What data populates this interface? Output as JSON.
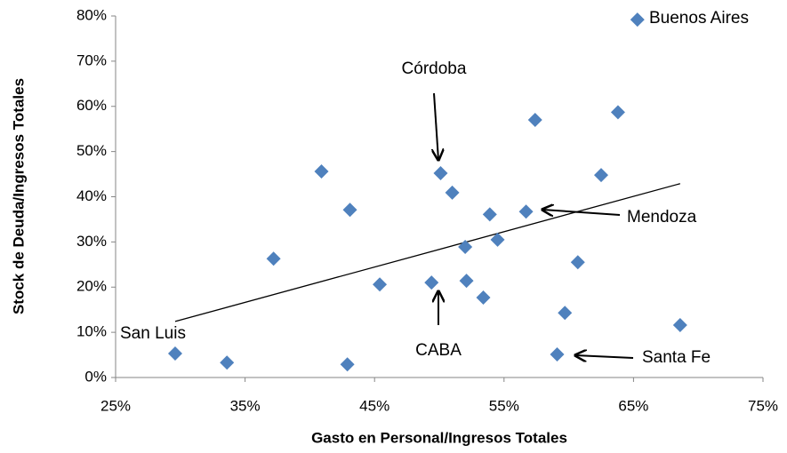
{
  "chart_data": {
    "type": "scatter",
    "x_label": "Gasto en Personal/Ingresos Totales",
    "y_label": "Stock de Deuda/Ingresos Totales",
    "series": [
      {
        "color": "#4f81bd",
        "x": [
          65.3,
          63.8,
          57.4,
          62.5,
          40.9,
          50.1,
          51.0,
          43.1,
          53.9,
          56.7,
          54.5,
          52.0,
          37.2,
          60.7,
          45.4,
          49.4,
          52.1,
          53.4,
          59.7,
          68.6,
          29.6,
          33.6,
          42.9,
          59.1
        ],
        "values": [
          79.2,
          58.7,
          57.0,
          44.8,
          45.6,
          45.2,
          40.9,
          37.1,
          36.1,
          36.7,
          30.5,
          28.9,
          26.3,
          25.5,
          20.6,
          21.0,
          21.4,
          17.7,
          14.3,
          11.6,
          5.3,
          3.3,
          2.9,
          5.1
        ]
      }
    ],
    "trendline": {
      "x": [
        29.6,
        68.6
      ],
      "values": [
        12.4,
        42.9
      ],
      "color": "#000000"
    },
    "xlim": [
      25,
      75
    ],
    "xticks": [
      {
        "value": 25,
        "label": "25%"
      },
      {
        "value": 35,
        "label": "35%"
      },
      {
        "value": 45,
        "label": "45%"
      },
      {
        "value": 55,
        "label": "55%"
      },
      {
        "value": 65,
        "label": "65%"
      },
      {
        "value": 75,
        "label": "75%"
      }
    ],
    "ylim": [
      0,
      80
    ],
    "yticks": [
      {
        "value": 0,
        "label": "0%"
      },
      {
        "value": 10,
        "label": "10%"
      },
      {
        "value": 20,
        "label": "20%"
      },
      {
        "value": 30,
        "label": "30%"
      },
      {
        "value": 40,
        "label": "40%"
      },
      {
        "value": 50,
        "label": "50%"
      },
      {
        "value": 60,
        "label": "60%"
      },
      {
        "value": 70,
        "label": "70%"
      },
      {
        "value": 80,
        "label": "80%"
      }
    ],
    "grid": false,
    "annotations": [
      "Buenos Aires",
      "Córdoba",
      "Mendoza",
      "CABA",
      "Santa Fe",
      "San Luis"
    ]
  }
}
